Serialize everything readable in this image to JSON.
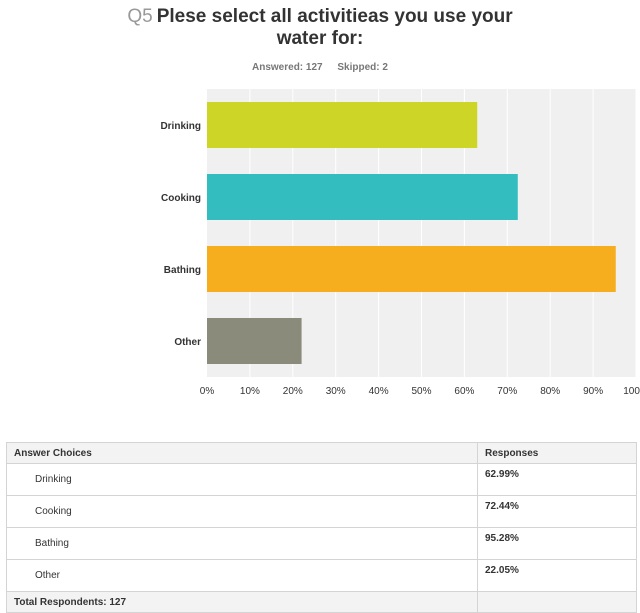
{
  "question": {
    "number": "Q5",
    "text_line1": "Plese select all activitieas you use your",
    "text_line2": "water for:"
  },
  "stats": {
    "answered": "Answered: 127",
    "skipped": "Skipped: 2"
  },
  "chart_data": {
    "type": "bar",
    "orientation": "horizontal",
    "categories": [
      "Drinking",
      "Cooking",
      "Bathing",
      "Other"
    ],
    "values": [
      62.99,
      72.44,
      95.28,
      22.05
    ],
    "colors": [
      "#cdd627",
      "#33bdbf",
      "#f6ad1e",
      "#8b8b7c"
    ],
    "xlim": [
      0,
      100
    ],
    "xticks": [
      "0%",
      "10%",
      "20%",
      "30%",
      "40%",
      "50%",
      "60%",
      "70%",
      "80%",
      "90%",
      "100%"
    ],
    "grid": true
  },
  "table": {
    "headers": [
      "Answer Choices",
      "Responses"
    ],
    "rows": [
      {
        "choice": "Drinking",
        "response": "62.99%"
      },
      {
        "choice": "Cooking",
        "response": "72.44%"
      },
      {
        "choice": "Bathing",
        "response": "95.28%"
      },
      {
        "choice": "Other",
        "response": "22.05%"
      }
    ],
    "footer": "Total Respondents: 127"
  }
}
